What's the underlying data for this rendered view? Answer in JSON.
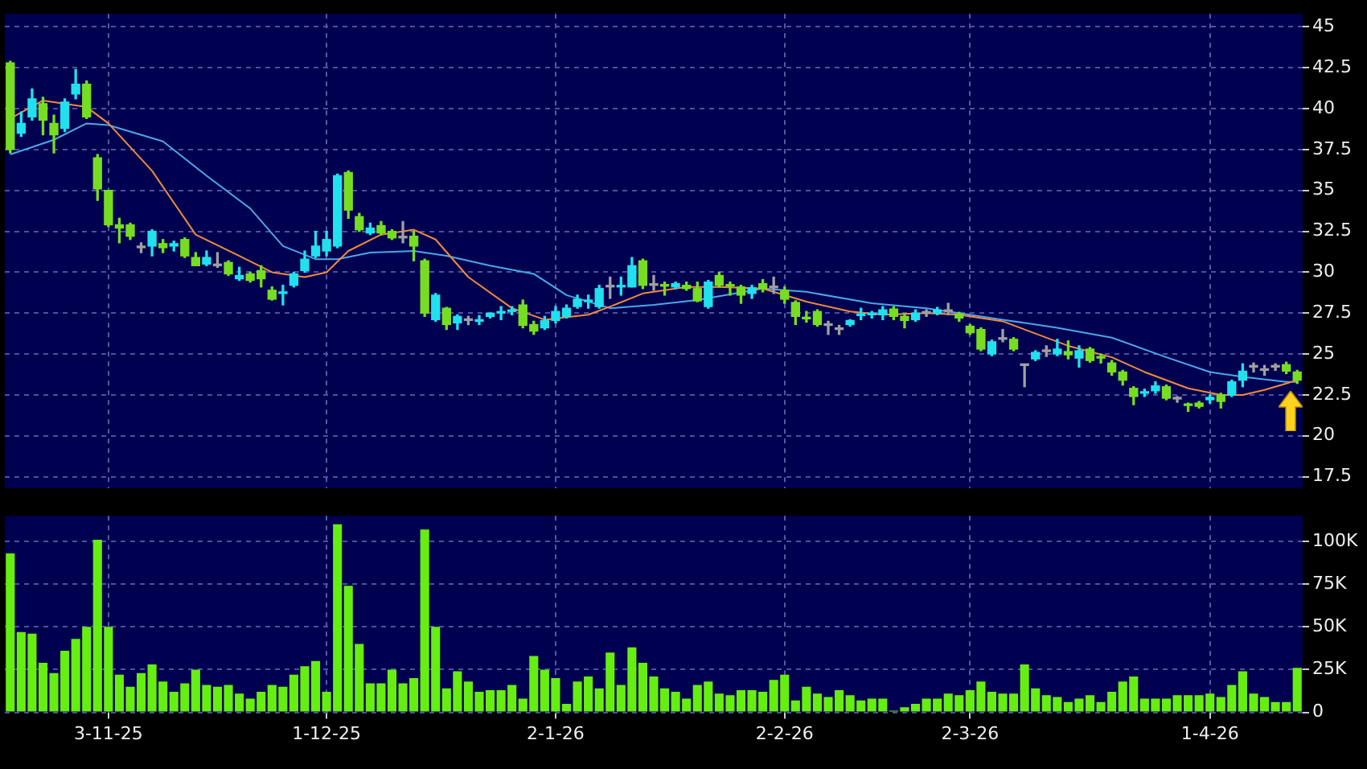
{
  "chart_data": [
    {
      "type": "candlestick",
      "categories": [
        null,
        null,
        null,
        null,
        null,
        null,
        null,
        null,
        null,
        null,
        null,
        null,
        null,
        null,
        null,
        null,
        null,
        null,
        null,
        null,
        null,
        null,
        null,
        null,
        null,
        null,
        null,
        null,
        null,
        null,
        null,
        null,
        null,
        null,
        null,
        null,
        null,
        null,
        null,
        null,
        null,
        null,
        null,
        null,
        null,
        null,
        null,
        null,
        null,
        null,
        null,
        null,
        null,
        null,
        null,
        null,
        null,
        null,
        null,
        null,
        null,
        null,
        null,
        null,
        null,
        null,
        null,
        null,
        null,
        null,
        null,
        null,
        null,
        null,
        null,
        null,
        null,
        null,
        null,
        null,
        null,
        null,
        null,
        null,
        null,
        null,
        null,
        null,
        null,
        null,
        null,
        null,
        null,
        null,
        null,
        null,
        null,
        null,
        null,
        null,
        null,
        null,
        null,
        null,
        null,
        null,
        null,
        null,
        null,
        null,
        null,
        null,
        null,
        null,
        null,
        null,
        null,
        null,
        null
      ],
      "ohlc": [
        [
          42.8,
          42.9,
          37.3,
          37.5
        ],
        [
          38.5,
          39.8,
          38.3,
          39.1
        ],
        [
          39.5,
          41.2,
          39.3,
          40.6
        ],
        [
          40.3,
          40.7,
          38.4,
          39.3
        ],
        [
          39.1,
          39.6,
          37.3,
          38.4
        ],
        [
          38.8,
          40.6,
          38.6,
          40.4
        ],
        [
          40.9,
          42.4,
          40.6,
          41.5
        ],
        [
          41.5,
          41.7,
          39.4,
          39.5
        ],
        [
          37,
          37.2,
          34.4,
          35.1
        ],
        [
          35,
          35,
          32.8,
          32.9
        ],
        [
          32.9,
          33.3,
          31.8,
          32.7
        ],
        [
          32.9,
          33,
          32,
          32.2
        ],
        [
          31.5,
          31.8,
          31.2,
          31.5
        ],
        [
          31.6,
          32.6,
          31,
          32.5
        ],
        [
          31.75,
          32,
          31.2,
          31.5
        ],
        [
          31.6,
          31.9,
          31.3,
          31.75
        ],
        [
          32,
          32.1,
          30.9,
          31
        ],
        [
          30.9,
          31.2,
          30.4,
          30.4
        ],
        [
          30.5,
          31.3,
          30.4,
          30.9
        ],
        [
          30.4,
          31.2,
          30.3,
          30.4
        ],
        [
          30.6,
          30.7,
          29.8,
          29.9
        ],
        [
          29.6,
          30.3,
          29.5,
          29.8
        ],
        [
          29.9,
          30,
          29.4,
          29.5
        ],
        [
          30.1,
          30.4,
          29.1,
          29.6
        ],
        [
          28.9,
          29.1,
          28.3,
          28.35
        ],
        [
          28.7,
          29.2,
          28,
          28.8
        ],
        [
          29.2,
          30,
          29.1,
          29.9
        ],
        [
          30.1,
          31.3,
          30,
          30.8
        ],
        [
          31,
          32.5,
          30.9,
          31.6
        ],
        [
          31.3,
          32.5,
          31,
          32
        ],
        [
          31.6,
          36,
          31.5,
          35.9
        ],
        [
          36.1,
          36.2,
          33.3,
          33.8
        ],
        [
          33.4,
          33.6,
          32.5,
          32.6
        ],
        [
          32.4,
          33,
          32.3,
          32.7
        ],
        [
          32.85,
          33.1,
          32.3,
          32.4
        ],
        [
          32.5,
          32.6,
          32,
          32.1
        ],
        [
          32.1,
          33.1,
          31.8,
          32.1
        ],
        [
          32.2,
          32.5,
          30.7,
          31.6
        ],
        [
          30.7,
          30.8,
          27.3,
          27.5
        ],
        [
          27.1,
          28.7,
          27,
          28.6
        ],
        [
          27.8,
          27.85,
          26.5,
          26.8
        ],
        [
          26.9,
          27.4,
          26.5,
          27.3
        ],
        [
          27.05,
          27.3,
          26.8,
          27.05
        ],
        [
          27,
          27.35,
          26.8,
          27.1
        ],
        [
          27.3,
          27.5,
          27.2,
          27.5
        ],
        [
          27.5,
          27.9,
          27.1,
          27.6
        ],
        [
          27.6,
          27.9,
          27.4,
          27.65
        ],
        [
          28,
          28.3,
          26.6,
          26.75
        ],
        [
          26.8,
          27,
          26.2,
          26.4
        ],
        [
          26.6,
          27.3,
          26.5,
          27.05
        ],
        [
          27.05,
          27.9,
          26.9,
          27.6
        ],
        [
          27.3,
          28,
          27.2,
          27.8
        ],
        [
          27.9,
          28.6,
          27.8,
          28.35
        ],
        [
          28.2,
          28.6,
          27.8,
          28.3
        ],
        [
          27.9,
          29.2,
          27.8,
          29
        ],
        [
          29.1,
          29.7,
          28.4,
          29.1
        ],
        [
          29.1,
          29.7,
          28.6,
          29.15
        ],
        [
          29.1,
          30.9,
          29.1,
          30.4
        ],
        [
          30.7,
          30.8,
          29,
          29.2
        ],
        [
          29.2,
          29.8,
          28.9,
          29.2
        ],
        [
          29.2,
          29.4,
          28.6,
          29.15
        ],
        [
          29.1,
          29.4,
          29,
          29.3
        ],
        [
          29.2,
          29.4,
          28.9,
          29
        ],
        [
          29,
          29.4,
          28.2,
          28.25
        ],
        [
          27.9,
          29.5,
          27.8,
          29.4
        ],
        [
          29.8,
          30,
          29.1,
          29.2
        ],
        [
          29.2,
          29.4,
          28.6,
          29.15
        ],
        [
          29.1,
          29.2,
          28.1,
          28.6
        ],
        [
          28.7,
          29.2,
          28.4,
          29.05
        ],
        [
          29.3,
          29.55,
          28.8,
          29
        ],
        [
          29.05,
          29.7,
          28.7,
          29.05
        ],
        [
          28.9,
          29.1,
          28.1,
          28.35
        ],
        [
          28.15,
          28.25,
          26.8,
          27.3
        ],
        [
          27.2,
          27.6,
          26.95,
          27.15
        ],
        [
          27.6,
          27.7,
          26.7,
          26.8
        ],
        [
          26.75,
          27,
          26.2,
          26.75
        ],
        [
          26.5,
          26.75,
          26.2,
          26.5
        ],
        [
          26.8,
          27.1,
          26.7,
          27.05
        ],
        [
          27.35,
          27.8,
          27.1,
          27.4
        ],
        [
          27.4,
          27.6,
          27.2,
          27.45
        ],
        [
          27.4,
          27.9,
          27.1,
          27.7
        ],
        [
          27.75,
          27.9,
          27.1,
          27.3
        ],
        [
          27.3,
          27.45,
          26.6,
          27.05
        ],
        [
          27.1,
          27.7,
          27,
          27.5
        ],
        [
          27.5,
          27.7,
          27.3,
          27.5
        ],
        [
          27.5,
          27.85,
          27.4,
          27.7
        ],
        [
          27.6,
          28.1,
          27.4,
          27.6
        ],
        [
          27.45,
          27.55,
          27,
          27.2
        ],
        [
          26.7,
          26.8,
          26.2,
          26.3
        ],
        [
          26.5,
          26.6,
          25.2,
          25.3
        ],
        [
          25,
          25.85,
          24.9,
          25.75
        ],
        [
          25.9,
          26.5,
          25.75,
          25.9
        ],
        [
          25.9,
          26,
          25.2,
          25.3
        ],
        [
          24.3,
          24.35,
          23,
          24.3
        ],
        [
          24.7,
          25.2,
          24.6,
          25.1
        ],
        [
          25.15,
          25.5,
          24.85,
          25.15
        ],
        [
          25,
          25.9,
          24.9,
          25.3
        ],
        [
          25.15,
          25.8,
          24.7,
          24.95
        ],
        [
          24.75,
          25.5,
          24.2,
          25.2
        ],
        [
          25.3,
          25.4,
          24.5,
          24.6
        ],
        [
          24.8,
          25,
          24.45,
          24.75
        ],
        [
          24.45,
          24.6,
          23.7,
          23.9
        ],
        [
          23.9,
          24,
          23.1,
          23.4
        ],
        [
          22.9,
          23,
          21.9,
          22.4
        ],
        [
          22.6,
          22.85,
          22.4,
          22.65
        ],
        [
          22.75,
          23.3,
          22.6,
          23.05
        ],
        [
          23,
          23.1,
          22.2,
          22.3
        ],
        [
          22.25,
          22.4,
          22.05,
          22.25
        ],
        [
          21.9,
          22,
          21.5,
          21.85
        ],
        [
          22,
          22.1,
          21.7,
          21.8
        ],
        [
          22.2,
          22.5,
          22,
          22.35
        ],
        [
          22.5,
          22.6,
          21.7,
          22.1
        ],
        [
          22.5,
          23.4,
          22.4,
          23.3
        ],
        [
          23.4,
          24.4,
          23,
          23.95
        ],
        [
          24.2,
          24.45,
          23.9,
          24.2
        ],
        [
          24,
          24.3,
          23.7,
          24
        ],
        [
          24.2,
          24.4,
          24,
          24.2
        ],
        [
          24.35,
          24.5,
          23.8,
          23.95
        ],
        [
          23.9,
          24,
          23.2,
          23.4
        ]
      ],
      "series": [
        {
          "type": "line",
          "color": "#f08a3c",
          "values": [
            39.4,
            null,
            null,
            40.5,
            null,
            null,
            null,
            40.1,
            null,
            39.1,
            null,
            null,
            null,
            36.2,
            null,
            null,
            null,
            32.3,
            null,
            null,
            null,
            31.0,
            null,
            null,
            30.0,
            null,
            null,
            29.7,
            null,
            30.0,
            null,
            31.3,
            null,
            null,
            32.3,
            null,
            null,
            32.6,
            null,
            32.0,
            null,
            null,
            29.7,
            null,
            null,
            null,
            27.8,
            null,
            null,
            27.1,
            null,
            null,
            null,
            27.4,
            null,
            27.9,
            null,
            null,
            28.7,
            null,
            null,
            null,
            29.1,
            null,
            null,
            29.1,
            null,
            null,
            null,
            29.0,
            null,
            null,
            null,
            28.2,
            null,
            null,
            null,
            27.6,
            null,
            null,
            27.4,
            null,
            null,
            null,
            27.5,
            null,
            null,
            27.4,
            null,
            null,
            null,
            27.0,
            null,
            26.5,
            null,
            null,
            null,
            25.5,
            null,
            null,
            null,
            24.8,
            null,
            null,
            23.9,
            null,
            null,
            null,
            22.9,
            null,
            null,
            22.5,
            null,
            22.5,
            null,
            22.8,
            null,
            23.2,
            23.4
          ]
        },
        {
          "type": "line",
          "color": "#4aa8e8",
          "values": [
            37.2,
            null,
            null,
            null,
            38.1,
            null,
            null,
            39.1,
            null,
            39.0,
            null,
            null,
            null,
            null,
            38.0,
            null,
            null,
            null,
            35.9,
            null,
            null,
            null,
            33.9,
            null,
            null,
            31.6,
            null,
            null,
            30.8,
            null,
            30.8,
            null,
            null,
            31.2,
            null,
            null,
            null,
            31.3,
            null,
            null,
            31.0,
            null,
            null,
            null,
            30.4,
            null,
            null,
            null,
            29.9,
            null,
            null,
            28.6,
            null,
            null,
            null,
            27.8,
            null,
            null,
            null,
            28.0,
            null,
            null,
            null,
            28.3,
            null,
            null,
            null,
            null,
            null,
            29.0,
            null,
            null,
            null,
            28.8,
            null,
            null,
            null,
            null,
            null,
            28.1,
            null,
            null,
            null,
            null,
            27.8,
            null,
            null,
            27.5,
            null,
            null,
            null,
            27.1,
            null,
            null,
            null,
            null,
            26.6,
            null,
            null,
            null,
            null,
            26.0,
            null,
            null,
            null,
            null,
            24.8,
            null,
            null,
            null,
            23.9,
            null,
            null,
            23.6,
            null,
            null,
            null,
            23.3,
            23.3
          ]
        }
      ],
      "ylim": [
        16.8,
        45.8
      ],
      "yticks": [
        17.5,
        20,
        22.5,
        25,
        27.5,
        30,
        32.5,
        35,
        37.5,
        40,
        42.5,
        45
      ],
      "grid": true,
      "legend": false,
      "tick_labels": "y"
    },
    {
      "type": "bar",
      "categories": [
        null,
        null,
        null,
        null,
        null,
        null,
        null,
        null,
        null,
        "3-11-25",
        null,
        null,
        null,
        null,
        null,
        null,
        null,
        null,
        null,
        null,
        null,
        null,
        null,
        null,
        null,
        null,
        null,
        null,
        null,
        "1-12-25",
        null,
        null,
        null,
        null,
        null,
        null,
        null,
        null,
        null,
        null,
        null,
        null,
        null,
        null,
        null,
        null,
        null,
        null,
        null,
        null,
        "2-1-26",
        null,
        null,
        null,
        null,
        null,
        null,
        null,
        null,
        null,
        null,
        null,
        null,
        null,
        null,
        null,
        null,
        null,
        null,
        null,
        null,
        "2-2-26",
        null,
        null,
        null,
        null,
        null,
        null,
        null,
        null,
        null,
        null,
        null,
        null,
        null,
        null,
        null,
        null,
        "2-3-26",
        null,
        null,
        null,
        null,
        null,
        null,
        null,
        null,
        null,
        null,
        null,
        null,
        null,
        null,
        null,
        null,
        null,
        null,
        null,
        null,
        null,
        "1-4-26",
        null,
        null,
        null,
        null,
        null,
        null,
        null,
        null
      ],
      "values": [
        93000,
        47000,
        46000,
        29000,
        23000,
        36000,
        43000,
        50000,
        101000,
        50000,
        22000,
        15000,
        23000,
        28000,
        18000,
        12000,
        17000,
        25000,
        16000,
        15000,
        16000,
        11000,
        8000,
        12000,
        16000,
        15000,
        22000,
        27000,
        30000,
        12000,
        110000,
        74000,
        40000,
        17000,
        17000,
        25000,
        17000,
        20000,
        107000,
        50000,
        14000,
        24000,
        18000,
        12000,
        13000,
        13000,
        16000,
        8000,
        33000,
        25000,
        20000,
        5000,
        18000,
        21000,
        14000,
        35000,
        16000,
        38000,
        29000,
        21000,
        14000,
        12000,
        8000,
        16000,
        18000,
        11000,
        10000,
        13000,
        13000,
        12000,
        19000,
        22000,
        7000,
        15000,
        11000,
        9000,
        13000,
        10000,
        7000,
        8000,
        8000,
        1000,
        3000,
        5000,
        8000,
        8000,
        11000,
        10000,
        13000,
        18000,
        12000,
        11000,
        11000,
        28000,
        14000,
        10000,
        9000,
        6000,
        8000,
        10000,
        6000,
        12000,
        18000,
        21000,
        8000,
        8000,
        8000,
        10000,
        10000,
        10000,
        11000,
        9000,
        16000,
        24000,
        11000,
        9000,
        6000,
        6000,
        26000
      ],
      "color": "#66ee11",
      "ylim": [
        0,
        115000
      ],
      "yticks": [
        {
          "value": 0,
          "label": "0"
        },
        {
          "value": 25000,
          "label": "25K"
        },
        {
          "value": 50000,
          "label": "50K"
        },
        {
          "value": 75000,
          "label": "75K"
        },
        {
          "value": 100000,
          "label": "100K"
        }
      ],
      "grid": true,
      "legend": false
    }
  ]
}
